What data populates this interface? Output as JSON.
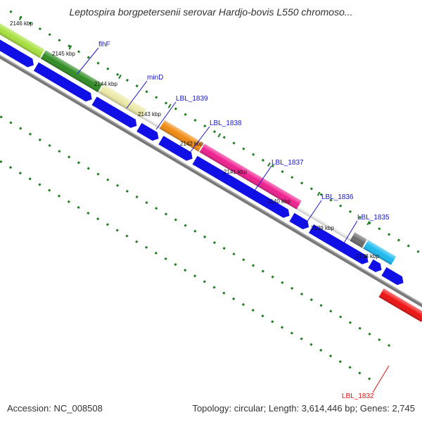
{
  "title": "Leptospira borgpetersenii serovar Hardjo-bovis L550 chromoso...",
  "footer": {
    "accession": "Accession: NC_008508",
    "topology": "Topology: circular; Length: 3,614,446 bp; Genes: 2,745"
  },
  "ticks": [
    "2146 kbp",
    "2145 kbp",
    "2144 kbp",
    "2143 kbp",
    "2142 kbp",
    "2141 kbp",
    "2140 kbp",
    "2139 kbp",
    "2138 kbp"
  ],
  "gene_labels": [
    "flhF",
    "minD",
    "LBL_1839",
    "LBL_1838",
    "LBL_1837",
    "LBL_1836",
    "LBL_1835",
    "LBL_1832"
  ],
  "colors": {
    "cds": "#1010e6",
    "backbone": "#777777",
    "dots": "#1e7d1e",
    "labels": "#1515cc",
    "highlight_label": "#dd1111"
  }
}
